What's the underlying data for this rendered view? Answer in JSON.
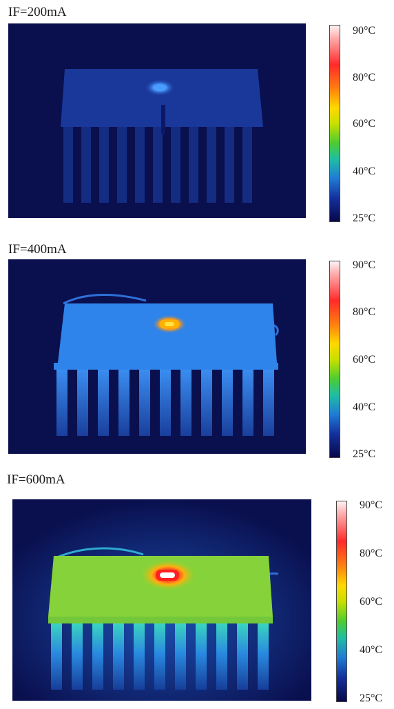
{
  "panels": [
    {
      "label": "IF=200mA",
      "colorbar_ticks": [
        "90°C",
        "80°C",
        "60°C",
        "40°C",
        "25°C"
      ]
    },
    {
      "label": "IF=400mA",
      "colorbar_ticks": [
        "90°C",
        "80°C",
        "60°C",
        "40°C",
        "25°C"
      ]
    },
    {
      "label": "IF=600mA",
      "colorbar_ticks": [
        "90°C",
        "80°C",
        "60°C",
        "40°C",
        "25°C"
      ]
    }
  ],
  "colors": {
    "background_cold": "#0a0f4e",
    "heatsink_200mA": "#1d3fa0",
    "heatsink_400mA": "#2d7ee0",
    "heatsink_600mA": "#7ed63a",
    "hotspot_hot": "#ff2a2a"
  }
}
